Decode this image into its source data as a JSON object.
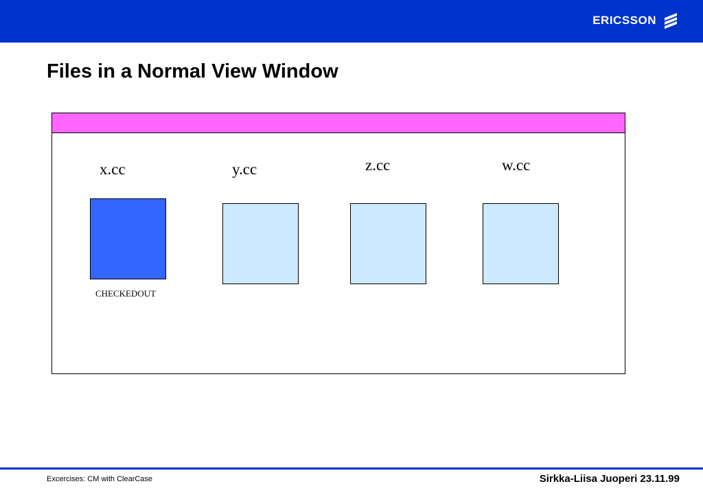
{
  "header": {
    "brand": "ERICSSON",
    "logo_icon": "ericsson-logo-icon",
    "bar_color": "#0033cc"
  },
  "slide": {
    "title": "Files in a Normal View Window"
  },
  "window": {
    "titlebar_color": "#ff66ff",
    "files": [
      {
        "name": "x.cc",
        "status": "CHECKEDOUT",
        "color": "#3366ff"
      },
      {
        "name": "y.cc",
        "status": "",
        "color": "#cce9ff"
      },
      {
        "name": "z.cc",
        "status": "",
        "color": "#cce9ff"
      },
      {
        "name": "w.cc",
        "status": "",
        "color": "#cce9ff"
      }
    ]
  },
  "footer": {
    "left_text": "Excercises: CM with ClearCase",
    "right_text": "Sirkka-Liisa Juoperi 23.11.99"
  }
}
